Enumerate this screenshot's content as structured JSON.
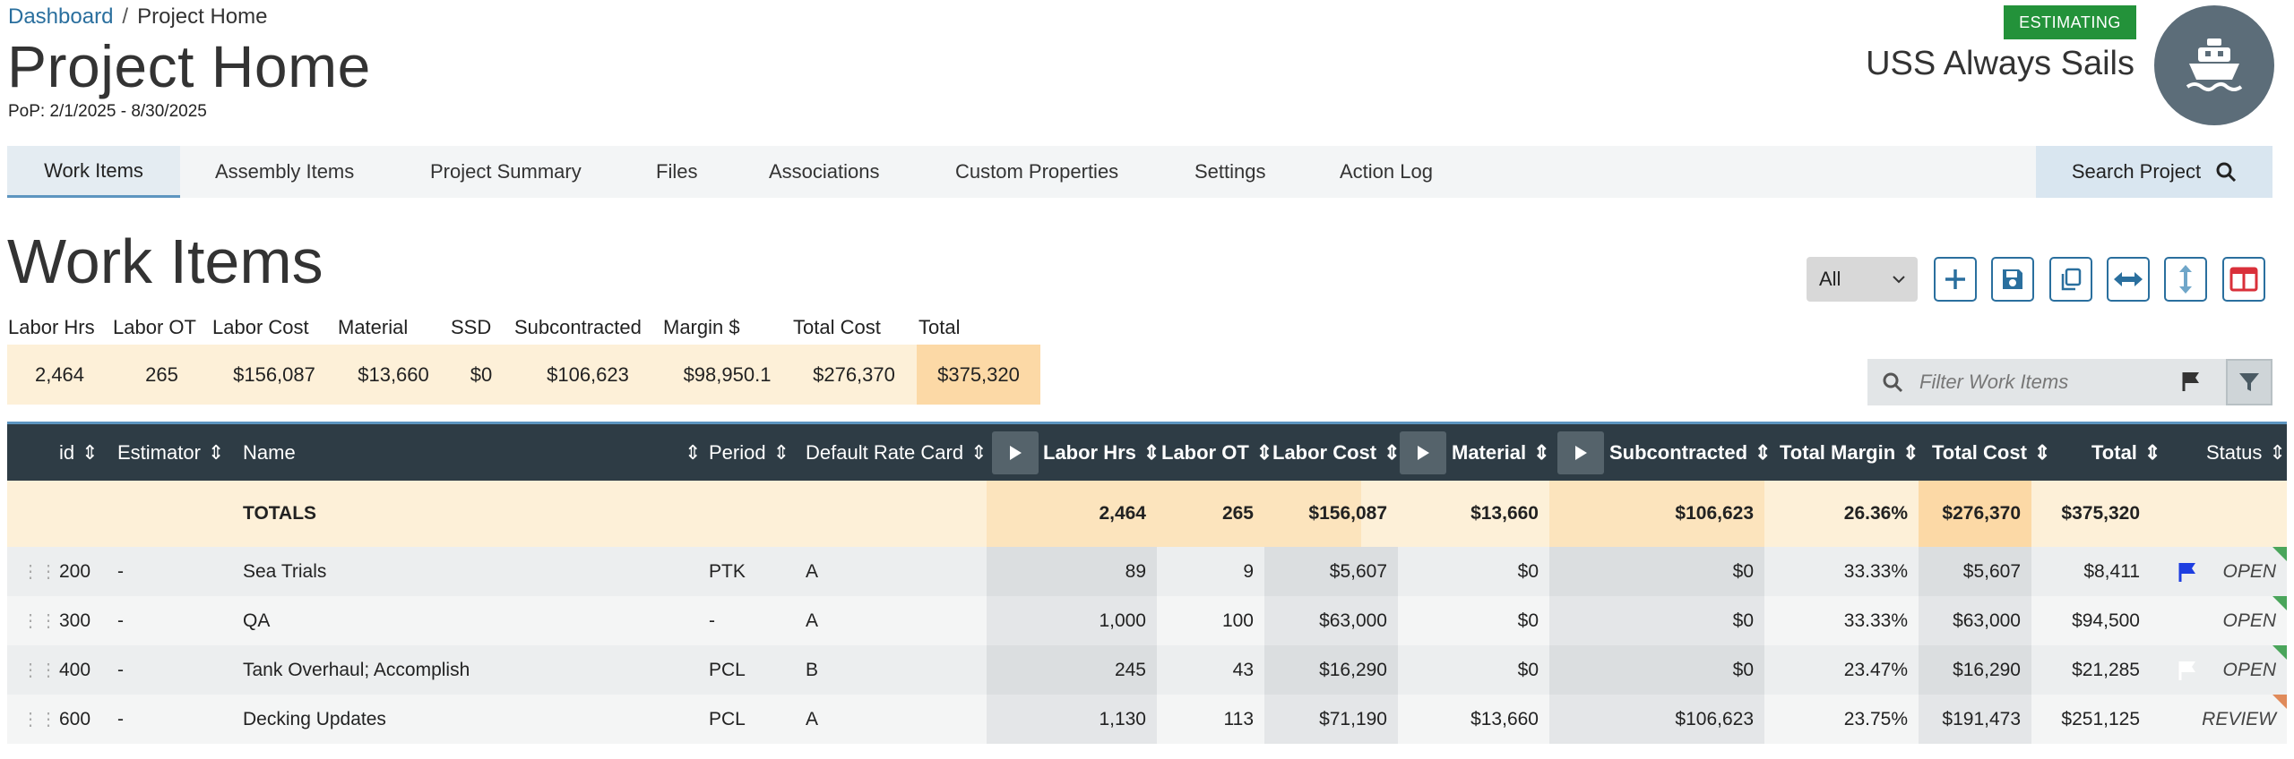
{
  "breadcrumb": {
    "link": "Dashboard",
    "separator": "/",
    "current": "Project Home"
  },
  "header": {
    "title": "Project Home",
    "pop": "PoP: 2/1/2025 - 8/30/2025",
    "status_badge": "ESTIMATING",
    "ship_name": "USS Always Sails",
    "avatar_icon": "ship-icon"
  },
  "tabs": [
    {
      "label": "Work Items",
      "active": true
    },
    {
      "label": "Assembly Items"
    },
    {
      "label": "Project Summary"
    },
    {
      "label": "Files"
    },
    {
      "label": "Associations"
    },
    {
      "label": "Custom Properties"
    },
    {
      "label": "Settings"
    },
    {
      "label": "Action Log"
    }
  ],
  "search_project": "Search Project",
  "section": {
    "title": "Work Items",
    "view_select": "All",
    "tools": [
      "plus-icon",
      "save-icon",
      "copy-icon",
      "expand-horizontal-icon",
      "expand-vertical-icon",
      "columns-icon"
    ]
  },
  "summary": {
    "labels": [
      "Labor Hrs",
      "Labor OT",
      "Labor Cost",
      "Material",
      "SSD",
      "Subcontracted",
      "Margin $",
      "Total Cost",
      "Total"
    ],
    "values": [
      "2,464",
      "265",
      "$156,087",
      "$13,660",
      "$0",
      "$106,623",
      "$98,950.1",
      "$276,370",
      "$375,320"
    ]
  },
  "filter": {
    "placeholder": "Filter Work Items"
  },
  "table": {
    "columns": [
      "id",
      "Estimator",
      "Name",
      "Period",
      "Default Rate Card",
      "Labor Hrs",
      "Labor OT",
      "Labor Cost",
      "Material",
      "Subcontracted",
      "Total Margin",
      "Total Cost",
      "Total",
      "Status"
    ],
    "totals": {
      "label": "TOTALS",
      "labor_hrs": "2,464",
      "labor_ot": "265",
      "labor_cost": "$156,087",
      "material": "$13,660",
      "subcontracted": "$106,623",
      "total_margin": "26.36%",
      "total_cost": "$276,370",
      "total": "$375,320"
    },
    "rows": [
      {
        "id": "200",
        "estimator": "-",
        "name": "Sea Trials",
        "period": "PTK",
        "rate_card": "A",
        "labor_hrs": "89",
        "labor_ot": "9",
        "labor_cost": "$5,607",
        "material": "$0",
        "subcontracted": "$0",
        "total_margin": "33.33%",
        "total_cost": "$5,607",
        "total": "$8,411",
        "flag": "blue",
        "status": "OPEN"
      },
      {
        "id": "300",
        "estimator": "-",
        "name": "QA",
        "period": "-",
        "rate_card": "A",
        "labor_hrs": "1,000",
        "labor_ot": "100",
        "labor_cost": "$63,000",
        "material": "$0",
        "subcontracted": "$0",
        "total_margin": "33.33%",
        "total_cost": "$63,000",
        "total": "$94,500",
        "flag": "none",
        "status": "OPEN"
      },
      {
        "id": "400",
        "estimator": "-",
        "name": "Tank Overhaul; Accomplish",
        "period": "PCL",
        "rate_card": "B",
        "labor_hrs": "245",
        "labor_ot": "43",
        "labor_cost": "$16,290",
        "material": "$0",
        "subcontracted": "$0",
        "total_margin": "23.47%",
        "total_cost": "$16,290",
        "total": "$21,285",
        "flag": "white",
        "status": "OPEN"
      },
      {
        "id": "600",
        "estimator": "-",
        "name": "Decking Updates",
        "period": "PCL",
        "rate_card": "A",
        "labor_hrs": "1,130",
        "labor_ot": "113",
        "labor_cost": "$71,190",
        "material": "$13,660",
        "subcontracted": "$106,623",
        "total_margin": "23.75%",
        "total_cost": "$191,473",
        "total": "$251,125",
        "flag": "none",
        "status": "REVIEW"
      }
    ]
  },
  "colors": {
    "accent": "#2a6f9e",
    "badge": "#23923a",
    "header_bg": "#2e3c45",
    "totals_bg": "#fdf0d8",
    "highlight": "#fcd9a6"
  }
}
